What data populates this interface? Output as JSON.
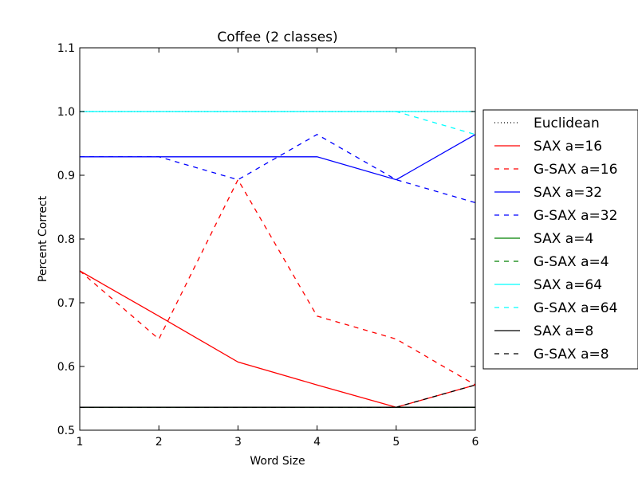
{
  "chart_data": {
    "type": "line",
    "title": "Coffee (2 classes)",
    "xlabel": "Word Size",
    "ylabel": "Percent Correct",
    "xlim": [
      1,
      6
    ],
    "ylim": [
      0.5,
      1.1
    ],
    "x": [
      1,
      2,
      3,
      4,
      5,
      6
    ],
    "x_ticks": [
      "1",
      "2",
      "3",
      "4",
      "5",
      "6"
    ],
    "y_ticks": [
      "0.5",
      "0.6",
      "0.7",
      "0.8",
      "0.9",
      "1.0",
      "1.1"
    ],
    "grid": false,
    "legend_position": "outside-right",
    "series": [
      {
        "name": "Euclidean",
        "color": "#000000",
        "style": "dotted",
        "values": [
          1.0,
          1.0,
          1.0,
          1.0,
          1.0,
          1.0
        ]
      },
      {
        "name": "SAX a=16",
        "color": "#ff0000",
        "style": "solid",
        "values": [
          0.75,
          0.679,
          0.607,
          0.571,
          0.536,
          0.571
        ]
      },
      {
        "name": "G-SAX a=16",
        "color": "#ff0000",
        "style": "dashed",
        "values": [
          0.75,
          0.643,
          0.893,
          0.679,
          0.643,
          0.571
        ]
      },
      {
        "name": "SAX a=32",
        "color": "#0000ff",
        "style": "solid",
        "values": [
          0.929,
          0.929,
          0.929,
          0.929,
          0.893,
          0.964
        ]
      },
      {
        "name": "G-SAX a=32",
        "color": "#0000ff",
        "style": "dashed",
        "values": [
          0.929,
          0.929,
          0.893,
          0.964,
          0.893,
          0.857
        ]
      },
      {
        "name": "SAX a=4",
        "color": "#008000",
        "style": "solid",
        "values": [
          0.536,
          0.536,
          0.536,
          0.536,
          0.536,
          0.536
        ]
      },
      {
        "name": "G-SAX a=4",
        "color": "#008000",
        "style": "dashed",
        "values": [
          0.536,
          0.536,
          0.536,
          0.536,
          0.536,
          0.536
        ]
      },
      {
        "name": "SAX a=64",
        "color": "#00ffff",
        "style": "solid",
        "values": [
          1.0,
          1.0,
          1.0,
          1.0,
          1.0,
          1.0
        ]
      },
      {
        "name": "G-SAX a=64",
        "color": "#00ffff",
        "style": "dashed",
        "values": [
          1.0,
          1.0,
          1.0,
          1.0,
          1.0,
          0.964
        ]
      },
      {
        "name": "SAX a=8",
        "color": "#000000",
        "style": "solid",
        "values": [
          0.536,
          0.536,
          0.536,
          0.536,
          0.536,
          0.536
        ]
      },
      {
        "name": "G-SAX a=8",
        "color": "#000000",
        "style": "dashed",
        "values": [
          0.536,
          0.536,
          0.536,
          0.536,
          0.536,
          0.571
        ]
      }
    ]
  }
}
